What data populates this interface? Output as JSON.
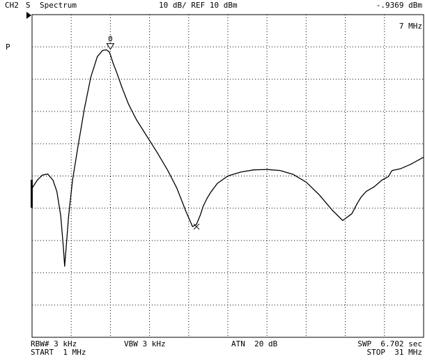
{
  "header": {
    "channel": "CH2",
    "param": "S",
    "mode": "Spectrum",
    "scale": "10 dB/ REF 10 dBm",
    "marker_value": "-.9369 dBm",
    "marker_freq": "7 MHz"
  },
  "side_label": "P",
  "marker_label": "0",
  "footer": {
    "rbw": "RBW# 3 kHz",
    "vbw": "VBW 3 kHz",
    "atn": "ATN  20 dB",
    "swp": "SWP  6.702 sec",
    "start": "START  1 MHz",
    "stop": "STOP  31 MHz"
  },
  "colors": {
    "trace": "#000000",
    "grid": "#000000",
    "background": "#ffffff"
  },
  "chart_data": {
    "type": "line",
    "title": "",
    "xlabel": "",
    "ylabel": "",
    "x_unit": "MHz",
    "y_unit": "dBm",
    "xlim": [
      1,
      31
    ],
    "ylim": [
      -90,
      10
    ],
    "grid": true,
    "marker": {
      "x": 7,
      "y": -0.94
    },
    "series": [
      {
        "x": [
          1.0,
          1.4,
          1.8,
          2.2,
          2.6,
          2.9,
          3.2,
          3.4,
          3.5,
          3.6,
          3.8,
          4.1,
          4.5,
          5.0,
          5.5,
          6.0,
          6.4,
          6.7,
          6.9,
          7.0,
          7.2,
          7.5,
          7.9,
          8.4,
          9.0,
          9.8,
          10.6,
          11.4,
          12.1,
          12.8,
          13.3,
          13.6,
          13.9,
          14.1,
          14.4,
          14.7,
          15.2,
          16.0,
          17.0,
          18.0,
          19.0,
          20.0,
          21.0,
          22.0,
          23.0,
          24.0,
          24.8,
          25.5,
          25.9,
          26.2,
          26.6,
          27.2,
          27.8,
          28.3,
          28.5,
          28.6,
          29.2,
          30.0,
          31.0
        ],
        "y": [
          -43.8,
          -41.3,
          -39.7,
          -39.4,
          -41.3,
          -44.8,
          -52.4,
          -62.3,
          -68.0,
          -62.8,
          -52.4,
          -41.3,
          -31.3,
          -19.4,
          -9.4,
          -3.0,
          -1.1,
          -0.9,
          -1.5,
          -2.4,
          -4.9,
          -8.1,
          -12.7,
          -17.8,
          -22.6,
          -27.7,
          -32.8,
          -38.3,
          -43.8,
          -51.1,
          -55.7,
          -55.0,
          -52.0,
          -49.5,
          -47.0,
          -45.0,
          -42.3,
          -40.0,
          -38.8,
          -38.1,
          -38.0,
          -38.3,
          -39.5,
          -41.9,
          -45.8,
          -50.6,
          -53.8,
          -51.7,
          -48.6,
          -46.6,
          -44.8,
          -43.4,
          -41.3,
          -40.2,
          -38.8,
          -38.3,
          -37.8,
          -36.4,
          -34.2
        ]
      }
    ]
  }
}
